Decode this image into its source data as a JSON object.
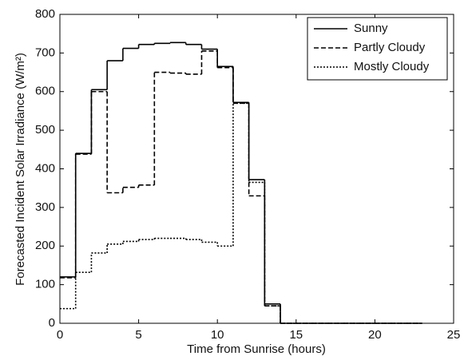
{
  "chart_data": {
    "type": "step",
    "xlabel": "Time from Sunrise (hours)",
    "ylabel": "Forecasted Incident Solar Irradiance (W/m²)",
    "x": [
      0,
      1,
      2,
      3,
      4,
      5,
      6,
      7,
      8,
      9,
      10,
      11,
      12,
      13,
      14,
      15,
      16,
      17,
      18,
      19,
      20,
      21,
      22,
      23
    ],
    "series": [
      {
        "name": "Sunny",
        "color": "#000000",
        "dash": "solid",
        "values": [
          120,
          440,
          605,
          680,
          712,
          722,
          725,
          727,
          722,
          710,
          665,
          572,
          372,
          50,
          0,
          0,
          0,
          0,
          0,
          0,
          0,
          0,
          0,
          0
        ]
      },
      {
        "name": "Partly Cloudy",
        "color": "#000000",
        "dash": "dashed",
        "values": [
          118,
          438,
          600,
          338,
          352,
          358,
          650,
          648,
          645,
          705,
          662,
          570,
          330,
          45,
          0,
          0,
          0,
          0,
          0,
          0,
          0,
          0,
          0,
          0
        ]
      },
      {
        "name": "Mostly Cloudy",
        "color": "#000000",
        "dash": "dotted",
        "values": [
          38,
          132,
          182,
          205,
          212,
          217,
          220,
          220,
          217,
          210,
          200,
          570,
          365,
          45,
          0,
          0,
          0,
          0,
          0,
          0,
          0,
          0,
          0,
          0
        ]
      }
    ],
    "xlim": [
      0,
      25
    ],
    "xticks": [
      0,
      5,
      10,
      15,
      20,
      25
    ],
    "ylim": [
      0,
      800
    ],
    "yticks": [
      0,
      100,
      200,
      300,
      400,
      500,
      600,
      700,
      800
    ],
    "grid": false,
    "legend": "upper right"
  }
}
